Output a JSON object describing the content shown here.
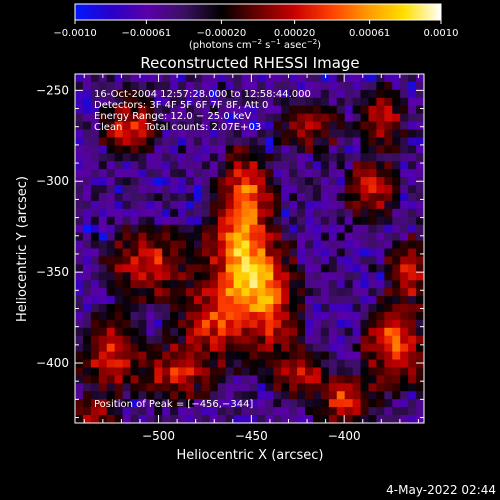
{
  "chart_data": {
    "type": "heatmap",
    "title": "Reconstructed RHESSI Image",
    "xlabel": "Heliocentric X (arcsec)",
    "ylabel": "Heliocentric Y (arcsec)",
    "xlim": [
      -545,
      -357
    ],
    "ylim": [
      -433,
      -241
    ],
    "x_ticks": [
      -500,
      -450,
      -400
    ],
    "x_tick_labels": [
      "−500",
      "−450",
      "−400"
    ],
    "y_ticks": [
      -250,
      -300,
      -350,
      -400
    ],
    "y_tick_labels": [
      "−250",
      "−300",
      "−350",
      "−400"
    ],
    "colorbar": {
      "range": [
        -0.001,
        0.001
      ],
      "ticks": [
        -0.001,
        -0.00061,
        -0.0002,
        0.0002,
        0.00061,
        0.001
      ],
      "tick_labels": [
        "−0.0010",
        "−0.00061",
        "−0.00020",
        "0.00020",
        "0.00061",
        "0.0010"
      ],
      "unit_label_parts": [
        "(photons cm",
        "−2",
        " s",
        "−1",
        " asec",
        "−2",
        ")"
      ],
      "colors": [
        "#0018ff",
        "#2a00c8",
        "#5a00a8",
        "#3a1060",
        "#000000",
        "#6a0000",
        "#c80000",
        "#ff4000",
        "#ff9a00",
        "#ffe000",
        "#ffffff"
      ]
    },
    "annotations": {
      "obs_time": "16-Oct-2004 12:57:28.000 to 12:58:44.000",
      "detectors": "Detectors: 3F 4F 5F 6F 7F 8F, Att 0",
      "energy": "Energy Range: 12.0 − 25.0 keV",
      "method": "Clean",
      "counts": "Total counts: 2.07E+03",
      "peak": "Position of Peak = [−456,−344]"
    },
    "peak": {
      "x": -456,
      "y": -344
    },
    "grid": "off",
    "blobs": [
      {
        "x": -456,
        "y": -344,
        "sx": 10,
        "sy": 22,
        "a": 1.0
      },
      {
        "x": -452,
        "y": -305,
        "sx": 8,
        "sy": 14,
        "a": 0.6
      },
      {
        "x": -440,
        "y": -365,
        "sx": 9,
        "sy": 18,
        "a": 0.7
      },
      {
        "x": -470,
        "y": -378,
        "sx": 12,
        "sy": 14,
        "a": 0.55
      },
      {
        "x": -515,
        "y": -270,
        "sx": 9,
        "sy": 10,
        "a": 0.6
      },
      {
        "x": -505,
        "y": -345,
        "sx": 14,
        "sy": 12,
        "a": 0.55
      },
      {
        "x": -525,
        "y": -395,
        "sx": 10,
        "sy": 12,
        "a": 0.65
      },
      {
        "x": -490,
        "y": -405,
        "sx": 12,
        "sy": 10,
        "a": 0.5
      },
      {
        "x": -380,
        "y": -265,
        "sx": 8,
        "sy": 10,
        "a": 0.55
      },
      {
        "x": -385,
        "y": -305,
        "sx": 8,
        "sy": 10,
        "a": 0.6
      },
      {
        "x": -372,
        "y": -390,
        "sx": 10,
        "sy": 14,
        "a": 0.75
      },
      {
        "x": -400,
        "y": -420,
        "sx": 10,
        "sy": 8,
        "a": 0.65
      },
      {
        "x": -425,
        "y": -405,
        "sx": 10,
        "sy": 8,
        "a": 0.5
      },
      {
        "x": -420,
        "y": -270,
        "sx": 10,
        "sy": 8,
        "a": 0.45
      },
      {
        "x": -365,
        "y": -350,
        "sx": 7,
        "sy": 10,
        "a": 0.55
      },
      {
        "x": -535,
        "y": -430,
        "sx": 8,
        "sy": 6,
        "a": 0.5
      }
    ]
  },
  "footer": {
    "timestamp": "4-May-2022 02:44"
  }
}
